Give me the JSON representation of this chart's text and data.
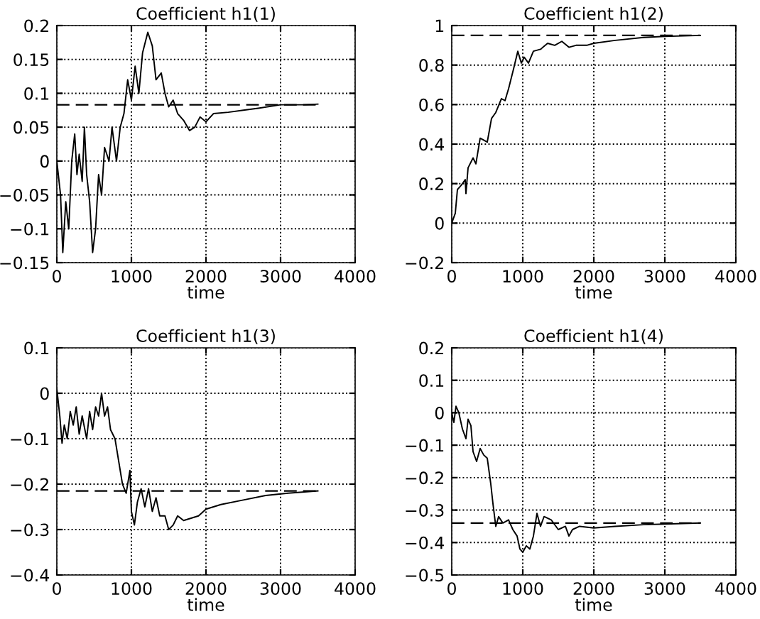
{
  "chart_data": [
    {
      "type": "line",
      "title": "Coefficient h1(1)",
      "xlabel": "time",
      "color": "#000000",
      "grid": true,
      "x": [
        0,
        50,
        80,
        120,
        160,
        200,
        240,
        270,
        300,
        340,
        370,
        400,
        440,
        480,
        520,
        560,
        600,
        640,
        700,
        740,
        800,
        850,
        900,
        950,
        1000,
        1050,
        1100,
        1150,
        1220,
        1280,
        1330,
        1400,
        1450,
        1500,
        1560,
        1620,
        1700,
        1780,
        1850,
        1920,
        2000,
        2100,
        2300,
        2500,
        2700,
        3000,
        3300,
        3500
      ],
      "values": [
        0.0,
        -0.05,
        -0.135,
        -0.06,
        -0.1,
        0.0,
        0.04,
        -0.02,
        0.01,
        -0.03,
        0.05,
        -0.02,
        -0.06,
        -0.135,
        -0.1,
        -0.02,
        -0.05,
        0.02,
        0.0,
        0.05,
        0.0,
        0.05,
        0.07,
        0.12,
        0.09,
        0.14,
        0.1,
        0.16,
        0.19,
        0.17,
        0.12,
        0.13,
        0.1,
        0.08,
        0.09,
        0.07,
        0.06,
        0.045,
        0.05,
        0.065,
        0.058,
        0.07,
        0.072,
        0.075,
        0.078,
        0.083,
        0.083,
        0.084
      ],
      "xlim": [
        0,
        4000
      ],
      "xticks": [
        0,
        1000,
        2000,
        3000,
        4000
      ],
      "ylim": [
        -0.15,
        0.2
      ],
      "yticks": [
        -0.15,
        -0.1,
        -0.05,
        0,
        0.05,
        0.1,
        0.15,
        0.2
      ],
      "ref_lines": [
        {
          "axis": "y",
          "value": 0.083,
          "color": "#000000",
          "line_style": "dashed"
        }
      ]
    },
    {
      "type": "line",
      "title": "Coefficient h1(2)",
      "xlabel": "time",
      "color": "#000000",
      "grid": true,
      "x": [
        0,
        50,
        80,
        130,
        190,
        200,
        230,
        300,
        340,
        400,
        450,
        500,
        560,
        620,
        700,
        750,
        800,
        870,
        930,
        980,
        1020,
        1080,
        1150,
        1250,
        1350,
        1450,
        1550,
        1650,
        1750,
        1900,
        2000,
        2300,
        2700,
        3000,
        3500
      ],
      "values": [
        0.0,
        0.05,
        0.17,
        0.19,
        0.22,
        0.15,
        0.28,
        0.33,
        0.3,
        0.43,
        0.42,
        0.41,
        0.53,
        0.56,
        0.63,
        0.62,
        0.68,
        0.78,
        0.87,
        0.81,
        0.84,
        0.81,
        0.87,
        0.88,
        0.91,
        0.9,
        0.92,
        0.89,
        0.9,
        0.9,
        0.91,
        0.925,
        0.94,
        0.945,
        0.95
      ],
      "xlim": [
        0,
        4000
      ],
      "xticks": [
        0,
        1000,
        2000,
        3000,
        4000
      ],
      "ylim": [
        -0.2,
        1
      ],
      "yticks": [
        -0.2,
        0,
        0.2,
        0.4,
        0.6,
        0.8,
        1
      ],
      "ref_lines": [
        {
          "axis": "y",
          "value": 0.95,
          "color": "#000000",
          "line_style": "dashed"
        }
      ]
    },
    {
      "type": "line",
      "title": "Coefficient h1(3)",
      "xlabel": "time",
      "color": "#000000",
      "grid": true,
      "x": [
        0,
        40,
        70,
        100,
        140,
        180,
        220,
        260,
        300,
        340,
        400,
        440,
        480,
        520,
        560,
        600,
        640,
        680,
        720,
        780,
        830,
        880,
        930,
        980,
        1000,
        1040,
        1080,
        1130,
        1180,
        1230,
        1280,
        1330,
        1380,
        1450,
        1500,
        1560,
        1620,
        1700,
        1800,
        1900,
        2000,
        2200,
        2500,
        2800,
        3100,
        3500
      ],
      "values": [
        0.01,
        -0.05,
        -0.11,
        -0.07,
        -0.1,
        -0.04,
        -0.07,
        -0.03,
        -0.09,
        -0.05,
        -0.1,
        -0.04,
        -0.08,
        -0.03,
        -0.05,
        0.0,
        -0.05,
        -0.03,
        -0.08,
        -0.1,
        -0.15,
        -0.2,
        -0.22,
        -0.17,
        -0.26,
        -0.29,
        -0.24,
        -0.21,
        -0.25,
        -0.21,
        -0.26,
        -0.23,
        -0.27,
        -0.27,
        -0.3,
        -0.29,
        -0.27,
        -0.28,
        -0.275,
        -0.27,
        -0.255,
        -0.245,
        -0.235,
        -0.225,
        -0.22,
        -0.215
      ],
      "xlim": [
        0,
        4000
      ],
      "xticks": [
        0,
        1000,
        2000,
        3000,
        4000
      ],
      "ylim": [
        -0.4,
        0.1
      ],
      "yticks": [
        -0.4,
        -0.3,
        -0.2,
        -0.1,
        0,
        0.1
      ],
      "ref_lines": [
        {
          "axis": "y",
          "value": -0.215,
          "color": "#000000",
          "line_style": "dashed"
        }
      ]
    },
    {
      "type": "line",
      "title": "Coefficient h1(4)",
      "xlabel": "time",
      "color": "#000000",
      "grid": true,
      "x": [
        0,
        30,
        60,
        100,
        150,
        200,
        230,
        270,
        300,
        350,
        400,
        450,
        500,
        550,
        580,
        620,
        660,
        720,
        800,
        860,
        920,
        960,
        1000,
        1050,
        1100,
        1150,
        1200,
        1250,
        1300,
        1400,
        1500,
        1600,
        1650,
        1700,
        1800,
        2000,
        2300,
        2700,
        3000,
        3500
      ],
      "values": [
        0.0,
        -0.03,
        0.02,
        0.0,
        -0.05,
        -0.08,
        -0.02,
        -0.04,
        -0.12,
        -0.15,
        -0.11,
        -0.13,
        -0.14,
        -0.22,
        -0.28,
        -0.35,
        -0.32,
        -0.34,
        -0.33,
        -0.36,
        -0.38,
        -0.42,
        -0.43,
        -0.41,
        -0.42,
        -0.38,
        -0.31,
        -0.35,
        -0.32,
        -0.33,
        -0.36,
        -0.35,
        -0.38,
        -0.36,
        -0.35,
        -0.355,
        -0.35,
        -0.345,
        -0.343,
        -0.34
      ],
      "xlim": [
        0,
        4000
      ],
      "xticks": [
        0,
        1000,
        2000,
        3000,
        4000
      ],
      "ylim": [
        -0.5,
        0.2
      ],
      "yticks": [
        -0.5,
        -0.4,
        -0.3,
        -0.2,
        -0.1,
        0,
        0.1,
        0.2
      ],
      "ref_lines": [
        {
          "axis": "y",
          "value": -0.34,
          "color": "#000000",
          "line_style": "dashed"
        }
      ]
    }
  ]
}
